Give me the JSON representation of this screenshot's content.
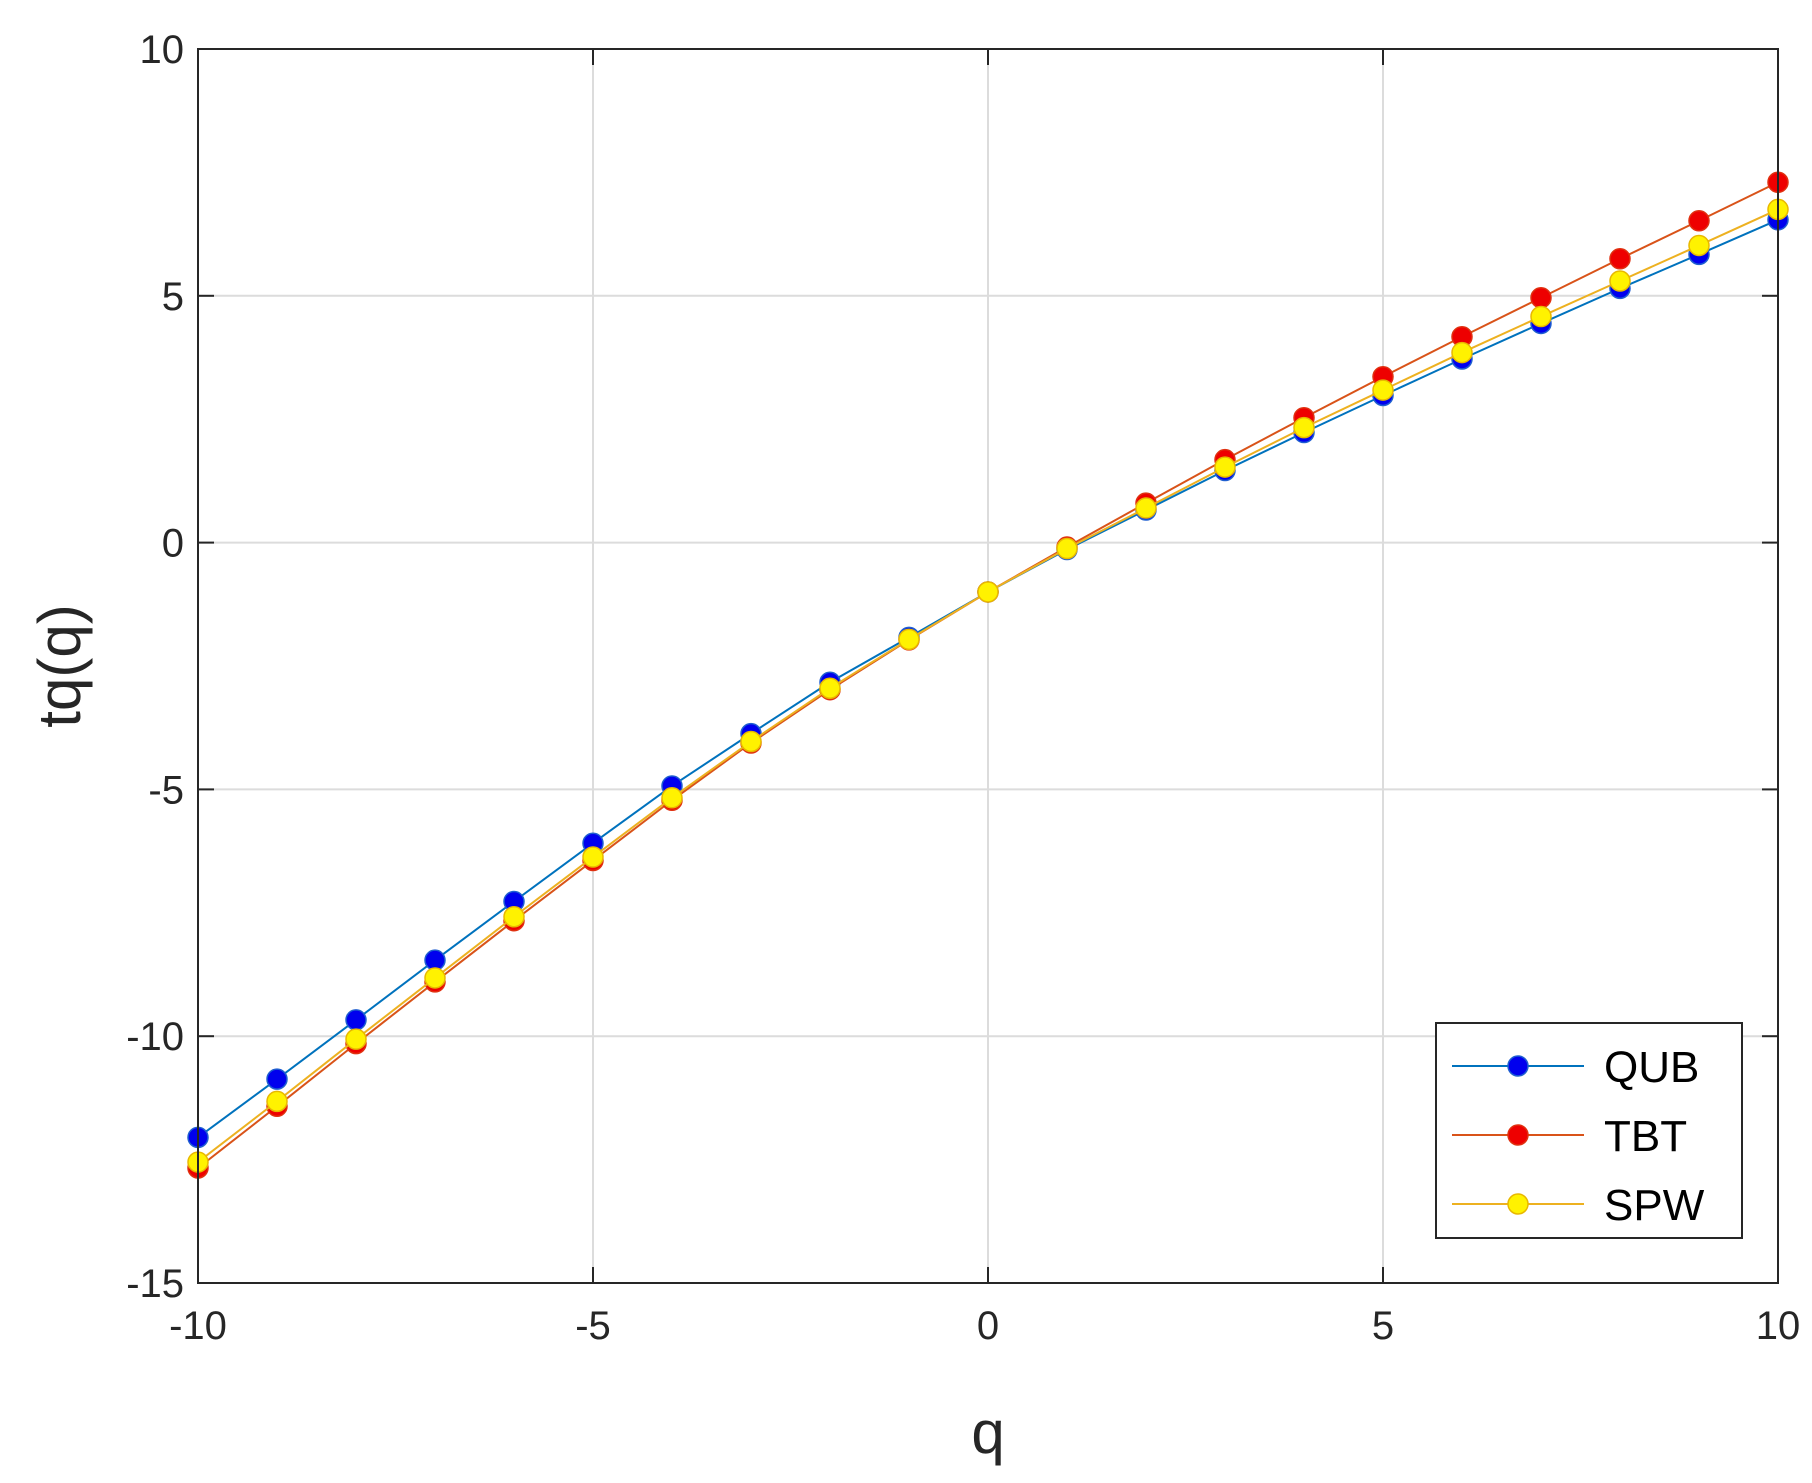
{
  "chart_data": {
    "type": "line",
    "title": "",
    "xlabel": "q",
    "ylabel": "tq(q)",
    "xlim": [
      -10,
      10
    ],
    "ylim": [
      -15,
      10
    ],
    "xticks": [
      -10,
      -5,
      0,
      5,
      10
    ],
    "yticks": [
      -15,
      -10,
      -5,
      0,
      5,
      10
    ],
    "xtick_labels": [
      "-10",
      "-5",
      "0",
      "5",
      "10"
    ],
    "ytick_labels": [
      "-15",
      "-10",
      "-5",
      "0",
      "5",
      "10"
    ],
    "grid": true,
    "legend_position": "bottom-right",
    "x": [
      -10,
      -9,
      -8,
      -7,
      -6,
      -5,
      -4,
      -3,
      -2,
      -1,
      0,
      1,
      2,
      3,
      4,
      5,
      6,
      7,
      8,
      9,
      10
    ],
    "series": [
      {
        "name": "QUB",
        "line_color": "#0072BD",
        "marker_color": "#0000EE",
        "marker_edge": "#1F5FD0",
        "values": [
          -12.05,
          -10.87,
          -9.67,
          -8.46,
          -7.27,
          -6.09,
          -4.93,
          -3.87,
          -2.83,
          -1.92,
          -1.0,
          -0.14,
          0.66,
          1.46,
          2.23,
          2.98,
          3.72,
          4.44,
          5.15,
          5.84,
          6.54
        ]
      },
      {
        "name": "TBT",
        "line_color": "#D95319",
        "marker_color": "#EE0000",
        "marker_edge": "#E03010",
        "values": [
          -12.67,
          -11.42,
          -10.15,
          -8.9,
          -7.66,
          -6.44,
          -5.22,
          -4.06,
          -2.98,
          -1.97,
          -1.0,
          -0.09,
          0.8,
          1.68,
          2.53,
          3.36,
          4.17,
          4.96,
          5.75,
          6.52,
          7.3
        ]
      },
      {
        "name": "SPW",
        "line_color": "#EDB120",
        "marker_color": "#FFF200",
        "marker_edge": "#E8B800",
        "values": [
          -12.55,
          -11.32,
          -10.06,
          -8.82,
          -7.58,
          -6.37,
          -5.17,
          -4.03,
          -2.95,
          -1.96,
          -1.0,
          -0.12,
          0.7,
          1.53,
          2.33,
          3.09,
          3.85,
          4.58,
          5.3,
          6.02,
          6.75
        ]
      }
    ]
  }
}
